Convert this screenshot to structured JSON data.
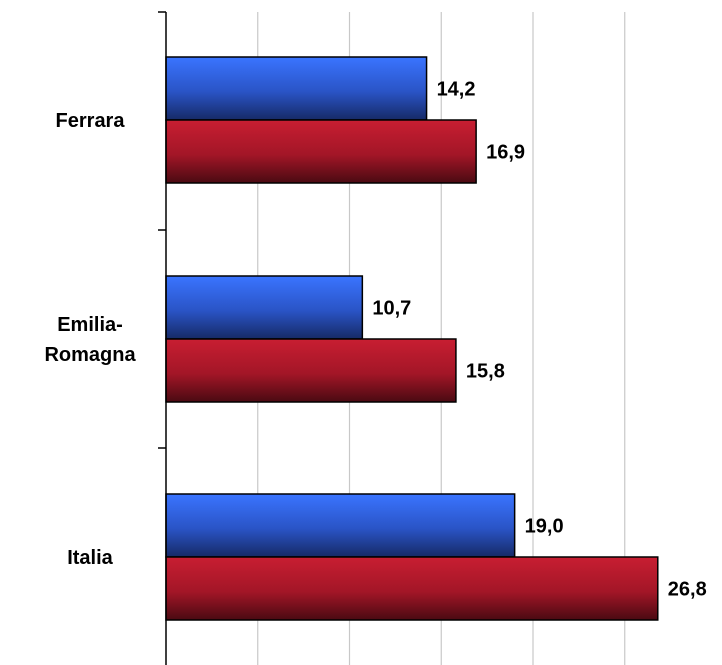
{
  "chart_data": {
    "type": "bar",
    "orientation": "horizontal",
    "categories": [
      "Ferrara",
      "Emilia-Romagna",
      "Italia"
    ],
    "category_lines": [
      [
        "Ferrara"
      ],
      [
        "Emilia-",
        "Romagna"
      ],
      [
        "Italia"
      ]
    ],
    "series": [
      {
        "color": "#2e5fd8",
        "values": [
          14.2,
          10.7,
          19.0
        ],
        "labels": [
          "14,2",
          "10,7",
          "19,0"
        ]
      },
      {
        "color": "#b01828",
        "values": [
          16.9,
          15.8,
          26.8
        ],
        "labels": [
          "16,9",
          "15,8",
          "26,8"
        ]
      }
    ],
    "xlim": [
      0,
      30
    ],
    "x_gridlines": [
      5,
      10,
      15,
      20,
      25
    ],
    "grid": true,
    "legend": "none",
    "title": "",
    "xlabel": "",
    "ylabel": ""
  }
}
